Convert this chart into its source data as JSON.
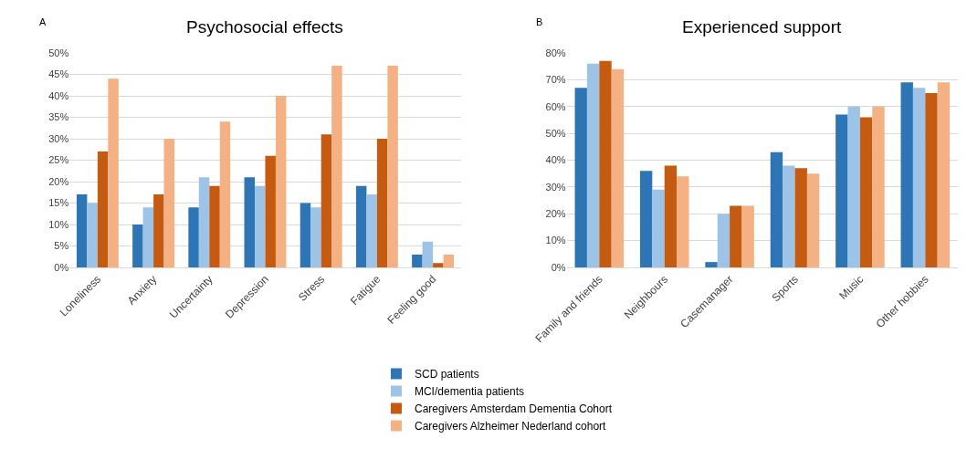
{
  "chart_data": [
    {
      "type": "bar",
      "title": "Psychosocial effects",
      "annotations": [
        "A"
      ],
      "categories": [
        "Loneliness",
        "Anxiety",
        "Uncertainty",
        "Depression",
        "Stress",
        "Fatigue",
        "Feeling good"
      ],
      "series": [
        {
          "name": "SCD patients",
          "color": "#2e75b6",
          "values": [
            17,
            10,
            14,
            21,
            15,
            19,
            3
          ]
        },
        {
          "name": "MCI/dementia patients",
          "color": "#9dc3e6",
          "values": [
            15,
            14,
            21,
            19,
            14,
            17,
            6
          ]
        },
        {
          "name": "Caregivers Amsterdam Dementia Cohort",
          "color": "#c55a11",
          "values": [
            27,
            17,
            19,
            26,
            31,
            30,
            1
          ]
        },
        {
          "name": "Caregivers Alzheimer Nederland cohort",
          "color": "#f4b183",
          "values": [
            44,
            30,
            34,
            40,
            47,
            47,
            3
          ]
        }
      ],
      "ylim": [
        0,
        50
      ],
      "yticks": [
        {
          "value": 0,
          "label": "0%"
        },
        {
          "value": 5,
          "label": "5%"
        },
        {
          "value": 10,
          "label": "10%"
        },
        {
          "value": 15,
          "label": "15%"
        },
        {
          "value": 20,
          "label": "20%"
        },
        {
          "value": 25,
          "label": "25%"
        },
        {
          "value": 30,
          "label": "30%"
        },
        {
          "value": 35,
          "label": "35%"
        },
        {
          "value": 40,
          "label": "40%"
        },
        {
          "value": 45,
          "label": "45%"
        },
        {
          "value": 50,
          "label": "50%"
        }
      ],
      "grid": "y",
      "legend": "bottom"
    },
    {
      "type": "bar",
      "title": "Experienced support",
      "annotations": [
        "B"
      ],
      "categories": [
        "Family and friends",
        "Neighbours",
        "Casemanager",
        "Sports",
        "Music",
        "Other hobbies"
      ],
      "series": [
        {
          "name": "SCD patients",
          "color": "#2e75b6",
          "values": [
            67,
            36,
            2,
            43,
            57,
            69
          ]
        },
        {
          "name": "MCI/dementia patients",
          "color": "#9dc3e6",
          "values": [
            76,
            29,
            20,
            38,
            60,
            67
          ]
        },
        {
          "name": "Caregivers Amsterdam Dementia Cohort",
          "color": "#c55a11",
          "values": [
            77,
            38,
            23,
            37,
            56,
            65
          ]
        },
        {
          "name": "Caregivers Alzheimer Nederland cohort",
          "color": "#f4b183",
          "values": [
            74,
            34,
            23,
            35,
            60,
            69
          ]
        }
      ],
      "ylim": [
        0,
        80
      ],
      "yticks": [
        {
          "value": 0,
          "label": "0%"
        },
        {
          "value": 10,
          "label": "10%"
        },
        {
          "value": 20,
          "label": "20%"
        },
        {
          "value": 30,
          "label": "30%"
        },
        {
          "value": 40,
          "label": "40%"
        },
        {
          "value": 50,
          "label": "50%"
        },
        {
          "value": 60,
          "label": "60%"
        },
        {
          "value": 70,
          "label": "70%"
        },
        {
          "value": 80,
          "label": "80%"
        }
      ],
      "grid": "y",
      "legend": "bottom"
    }
  ]
}
